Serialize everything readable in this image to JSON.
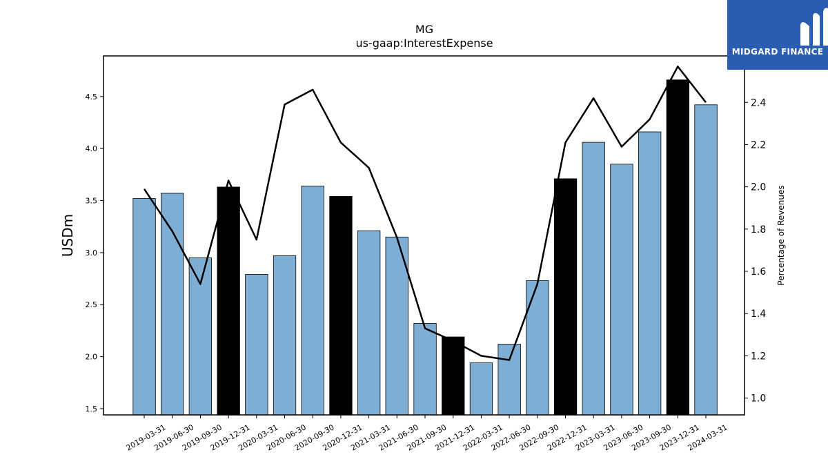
{
  "logo": {
    "text": "MIDGARD FINANCE"
  },
  "chart_data": {
    "type": "bar",
    "title": "MG",
    "subtitle": "us-gaap:InterestExpense",
    "ylabel": "USDm",
    "y2label": "Percentage of Revenues",
    "ylim": [
      1.44,
      4.89
    ],
    "y2lim": [
      0.92,
      2.62
    ],
    "yticks": [
      1.5,
      2.0,
      2.5,
      3.0,
      3.5,
      4.0,
      4.5
    ],
    "y2ticks": [
      1.0,
      1.2,
      1.4,
      1.6,
      1.8,
      2.0,
      2.2,
      2.4
    ],
    "categories": [
      "2019-03-31",
      "2019-06-30",
      "2019-09-30",
      "2019-12-31",
      "2020-03-31",
      "2020-06-30",
      "2020-09-30",
      "2020-12-31",
      "2021-03-31",
      "2021-06-30",
      "2021-09-30",
      "2021-12-31",
      "2022-03-31",
      "2022-06-30",
      "2022-09-30",
      "2022-12-31",
      "2023-03-31",
      "2023-06-30",
      "2023-09-30",
      "2023-12-31",
      "2024-03-31"
    ],
    "series": [
      {
        "type": "bar",
        "axis": "left",
        "values": [
          3.52,
          3.57,
          2.95,
          3.63,
          2.79,
          2.97,
          3.64,
          3.54,
          3.21,
          3.15,
          2.32,
          2.19,
          1.94,
          2.12,
          2.73,
          3.71,
          4.06,
          3.85,
          4.16,
          4.66,
          4.42
        ],
        "highlight": [
          false,
          false,
          false,
          true,
          false,
          false,
          false,
          true,
          false,
          false,
          false,
          true,
          false,
          false,
          false,
          true,
          false,
          false,
          false,
          true,
          false
        ]
      },
      {
        "type": "line",
        "axis": "right",
        "values": [
          1.99,
          1.79,
          1.54,
          2.03,
          1.75,
          2.39,
          2.46,
          2.21,
          2.09,
          1.76,
          1.33,
          1.27,
          1.2,
          1.18,
          1.54,
          2.21,
          2.42,
          2.19,
          2.32,
          2.57,
          2.4
        ]
      }
    ],
    "colors": {
      "bar": "#7eaed3",
      "bar_highlight": "#000000",
      "line": "#000000"
    },
    "grid": false
  }
}
